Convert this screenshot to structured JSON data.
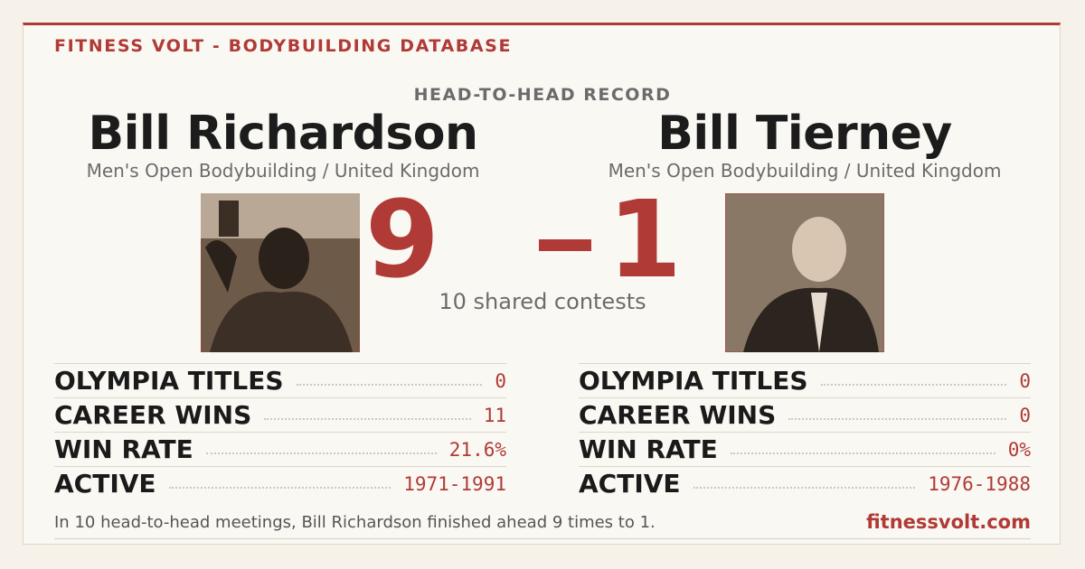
{
  "header": {
    "brand": "FITNESS VOLT - BODYBUILDING DATABASE",
    "kicker": "HEAD-TO-HEAD RECORD"
  },
  "athletes": [
    {
      "name": "Bill Richardson",
      "division": "Men's Open Bodybuilding / United Kingdom",
      "score": "9",
      "stats": [
        {
          "label": "OLYMPIA TITLES",
          "value": "0"
        },
        {
          "label": "CAREER WINS",
          "value": "11"
        },
        {
          "label": "WIN RATE",
          "value": "21.6%"
        },
        {
          "label": "ACTIVE",
          "value": "1971-1991"
        }
      ]
    },
    {
      "name": "Bill Tierney",
      "division": "Men's Open Bodybuilding / United Kingdom",
      "score": "1",
      "stats": [
        {
          "label": "OLYMPIA TITLES",
          "value": "0"
        },
        {
          "label": "CAREER WINS",
          "value": "0"
        },
        {
          "label": "WIN RATE",
          "value": "0%"
        },
        {
          "label": "ACTIVE",
          "value": "1976-1988"
        }
      ]
    }
  ],
  "shared": "10 shared contests",
  "footer": {
    "summary": "In 10 head-to-head meetings, Bill Richardson finished ahead 9 times to 1.",
    "site": "fitnessvolt.com"
  }
}
